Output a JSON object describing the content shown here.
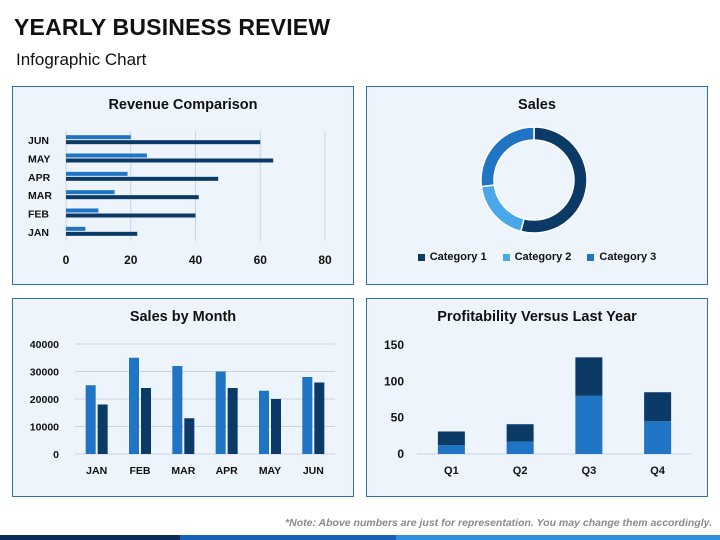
{
  "page": {
    "title": "YEARLY BUSINESS REVIEW",
    "subtitle": "Infographic Chart",
    "footnote": "*Note: Above numbers are just for representation. You may change them accordingly."
  },
  "colors": {
    "dark_navy": "#0b3a66",
    "medium_blue": "#1f74c4",
    "light_blue": "#4aa8ea",
    "panel_bg": "#eef4fb",
    "panel_border": "#2f6fb3"
  },
  "chart_data": [
    {
      "type": "bar",
      "orientation": "horizontal",
      "title": "Revenue Comparison",
      "categories": [
        "JAN",
        "FEB",
        "MAR",
        "APR",
        "MAY",
        "JUN"
      ],
      "series": [
        {
          "values": [
            6,
            10,
            15,
            19,
            25,
            20
          ],
          "color": "#1f74c4"
        },
        {
          "values": [
            22,
            40,
            41,
            47,
            64,
            60
          ],
          "color": "#0b3a66"
        }
      ],
      "xticks": [
        "0",
        "20",
        "40",
        "60",
        "80"
      ],
      "xlim": [
        0,
        80
      ],
      "grid": true
    },
    {
      "type": "pie",
      "variant": "donut",
      "title": "Sales",
      "labels": [
        "Category 1",
        "Category 2",
        "Category 3"
      ],
      "values": [
        54,
        19,
        27
      ],
      "colors": [
        "#0b3a66",
        "#4aa8ea",
        "#1f74c4"
      ],
      "legend": "bottom"
    },
    {
      "type": "bar",
      "orientation": "vertical",
      "title": "Sales by Month",
      "categories": [
        "JAN",
        "FEB",
        "MAR",
        "APR",
        "MAY",
        "JUN"
      ],
      "series": [
        {
          "values": [
            25000,
            35000,
            32000,
            30000,
            23000,
            28000
          ],
          "color": "#1f74c4"
        },
        {
          "values": [
            18000,
            24000,
            13000,
            24000,
            20000,
            26000
          ],
          "color": "#0b3a66"
        }
      ],
      "yticks": [
        "0",
        "10000",
        "20000",
        "30000",
        "40000"
      ],
      "ylim": [
        0,
        40000
      ],
      "grid": true
    },
    {
      "type": "bar",
      "orientation": "vertical",
      "stacked": true,
      "title": "Profitability Versus Last Year",
      "categories": [
        "Q1",
        "Q2",
        "Q3",
        "Q4"
      ],
      "series": [
        {
          "values": [
            12,
            17,
            80,
            45
          ],
          "color": "#1f74c4"
        },
        {
          "values": [
            19,
            24,
            53,
            40
          ],
          "color": "#0b3a66"
        }
      ],
      "yticks": [
        "0",
        "50",
        "100",
        "150"
      ],
      "ylim": [
        0,
        150
      ],
      "grid": false
    }
  ]
}
